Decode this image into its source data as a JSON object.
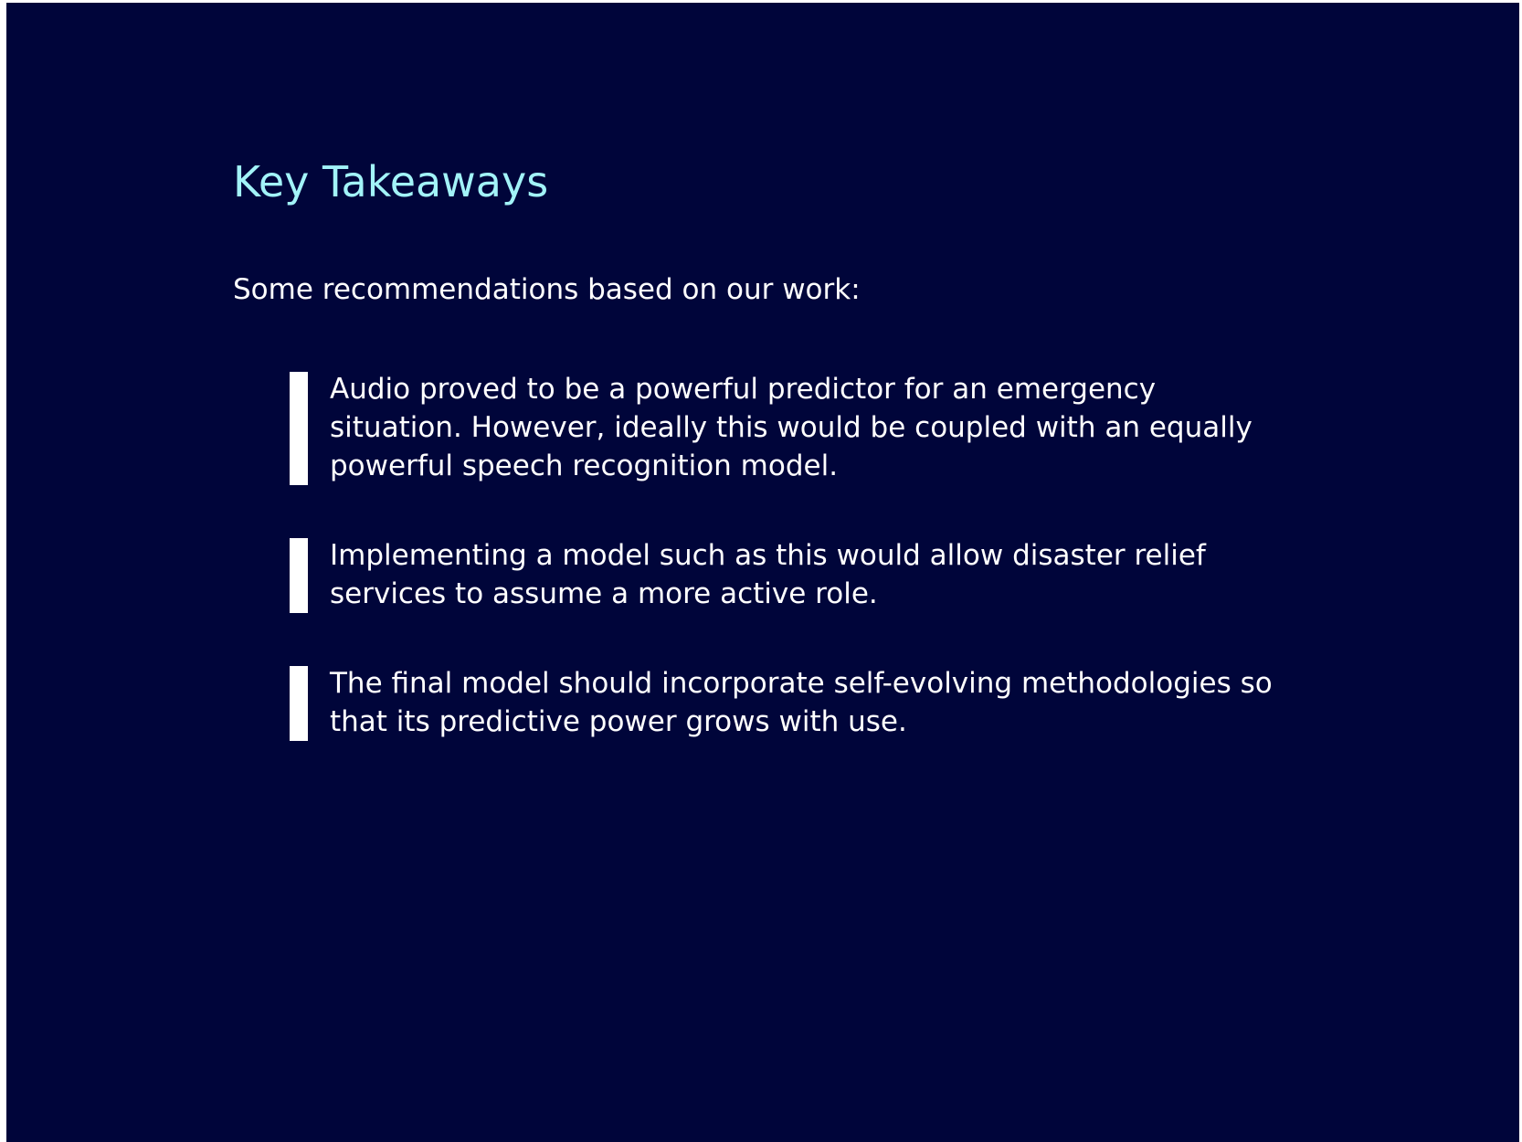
{
  "slide": {
    "title": "Key Takeaways",
    "intro": "Some recommendations based on our work:",
    "bullets": [
      "Audio proved to be a powerful predictor for an emergency situation. However, ideally this would be coupled with an equally powerful speech recognition model.",
      "Implementing a model such as this would allow disaster relief services to assume a more active role.",
      "The final model should incorporate self-evolving methodologies so that its predictive power grows with use."
    ]
  },
  "colors": {
    "background": "#00053a",
    "title": "#a2f3f8",
    "text": "#ffffff"
  }
}
